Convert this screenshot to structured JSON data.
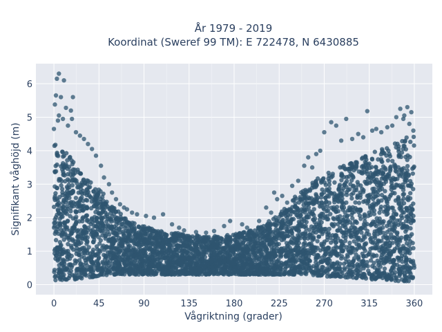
{
  "chart_data": {
    "type": "scatter",
    "title_line1": "År 1979 - 2019",
    "title_line2": "Koordinat (Sweref 99 TM): E 722478, N 6430885",
    "xlabel": "Vågriktning (grader)",
    "ylabel": "Signifikant våghöjd (m)",
    "xlim": [
      -18,
      378
    ],
    "ylim": [
      -0.3,
      6.6
    ],
    "xticks": [
      0,
      45,
      90,
      135,
      180,
      225,
      270,
      315,
      360
    ],
    "yticks": [
      0,
      1,
      2,
      3,
      4,
      5,
      6
    ],
    "grid": true,
    "background": "#e5e8ef",
    "marker_color": "#2e5570",
    "envelope": {
      "x": [
        0,
        10,
        20,
        30,
        45,
        60,
        75,
        90,
        105,
        120,
        135,
        150,
        165,
        180,
        195,
        210,
        225,
        240,
        255,
        270,
        285,
        300,
        315,
        330,
        345,
        360
      ],
      "upper": [
        4.3,
        4.0,
        3.7,
        3.3,
        2.9,
        2.3,
        1.9,
        1.75,
        1.6,
        1.55,
        1.5,
        1.45,
        1.45,
        1.5,
        1.6,
        1.8,
        2.1,
        2.6,
        3.0,
        3.3,
        3.5,
        3.7,
        3.9,
        4.1,
        4.3,
        4.5
      ],
      "lower": [
        0.1,
        0.15,
        0.15,
        0.2,
        0.25,
        0.3,
        0.3,
        0.3,
        0.3,
        0.3,
        0.3,
        0.3,
        0.3,
        0.3,
        0.3,
        0.3,
        0.3,
        0.3,
        0.3,
        0.25,
        0.2,
        0.2,
        0.15,
        0.15,
        0.1,
        0.1
      ]
    },
    "outliers": [
      [
        5,
        6.3
      ],
      [
        3,
        6.15
      ],
      [
        10,
        6.1
      ],
      [
        2,
        5.65
      ],
      [
        7,
        5.6
      ],
      [
        19,
        5.6
      ],
      [
        1,
        5.38
      ],
      [
        12,
        5.28
      ],
      [
        17,
        5.2
      ],
      [
        5,
        5.05
      ],
      [
        18,
        4.95
      ],
      [
        9,
        4.95
      ],
      [
        0,
        4.65
      ],
      [
        4,
        4.9
      ],
      [
        14,
        4.75
      ],
      [
        22,
        4.55
      ],
      [
        26,
        4.45
      ],
      [
        30,
        4.35
      ],
      [
        34,
        4.2
      ],
      [
        38,
        4.05
      ],
      [
        42,
        3.85
      ],
      [
        47,
        3.55
      ],
      [
        50,
        3.2
      ],
      [
        55,
        3.0
      ],
      [
        58,
        2.75
      ],
      [
        62,
        2.55
      ],
      [
        66,
        2.4
      ],
      [
        70,
        2.3
      ],
      [
        73,
        2.25
      ],
      [
        78,
        2.15
      ],
      [
        83,
        2.1
      ],
      [
        92,
        2.05
      ],
      [
        100,
        2.0
      ],
      [
        109,
        2.1
      ],
      [
        118,
        1.8
      ],
      [
        125,
        1.7
      ],
      [
        130,
        1.62
      ],
      [
        142,
        1.57
      ],
      [
        152,
        1.55
      ],
      [
        160,
        1.6
      ],
      [
        170,
        1.75
      ],
      [
        176,
        1.9
      ],
      [
        188,
        1.8
      ],
      [
        193,
        1.7
      ],
      [
        205,
        1.9
      ],
      [
        212,
        2.3
      ],
      [
        217,
        2.15
      ],
      [
        220,
        2.75
      ],
      [
        223,
        2.55
      ],
      [
        228,
        2.65
      ],
      [
        233,
        2.45
      ],
      [
        238,
        2.95
      ],
      [
        244,
        3.1
      ],
      [
        250,
        3.55
      ],
      [
        254,
        3.8
      ],
      [
        258,
        3.5
      ],
      [
        262,
        3.9
      ],
      [
        266,
        4.0
      ],
      [
        270,
        4.55
      ],
      [
        277,
        4.85
      ],
      [
        282,
        4.75
      ],
      [
        287,
        4.3
      ],
      [
        292,
        4.95
      ],
      [
        298,
        4.35
      ],
      [
        304,
        4.5
      ],
      [
        309,
        4.4
      ],
      [
        313,
        5.18
      ],
      [
        318,
        4.6
      ],
      [
        322,
        4.65
      ],
      [
        327,
        4.55
      ],
      [
        333,
        4.7
      ],
      [
        338,
        4.75
      ],
      [
        342,
        5.0
      ],
      [
        346,
        5.25
      ],
      [
        350,
        5.05
      ],
      [
        353,
        5.3
      ],
      [
        355,
        4.8
      ],
      [
        357,
        5.15
      ],
      [
        349,
        4.95
      ],
      [
        359,
        4.6
      ]
    ]
  }
}
